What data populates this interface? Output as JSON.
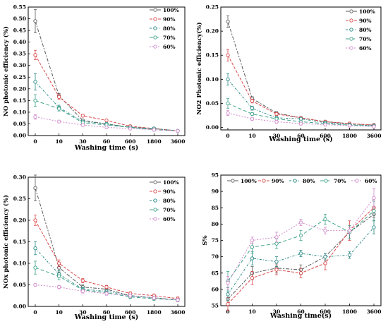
{
  "colors": [
    "#5a5a5a",
    "#d9484a",
    "#2a8a86",
    "#3fa28a",
    "#d08acb"
  ],
  "chart_data": [
    {
      "type": "line",
      "panel": "top-left",
      "xlabel": "Washing time (s)",
      "ylabel": "NO photonic efficiency (%)",
      "x_ticks": [
        "0",
        "10",
        "30",
        "60",
        "600",
        "1800",
        "3600"
      ],
      "ylim": [
        0,
        0.55
      ],
      "yticks": [
        "0.00",
        "0.05",
        "0.10",
        "0.15",
        "0.20",
        "0.25",
        "0.30",
        "0.35",
        "0.40",
        "0.45",
        "0.50",
        "0.55"
      ],
      "legend_position": "top-right",
      "series": [
        {
          "name": "100%",
          "values": [
            0.49,
            0.17,
            0.065,
            0.05,
            0.035,
            0.03,
            0.02
          ],
          "errors": [
            0.05,
            0.01,
            0.005,
            0.005,
            0.005,
            0.005,
            0.005
          ]
        },
        {
          "name": "90%",
          "values": [
            0.345,
            0.165,
            0.085,
            0.065,
            0.04,
            0.03,
            0.02
          ],
          "errors": [
            0.02,
            0.01,
            0.005,
            0.005,
            0.005,
            0.005,
            0.005
          ]
        },
        {
          "name": "80%",
          "values": [
            0.23,
            0.12,
            0.06,
            0.05,
            0.035,
            0.03,
            0.02
          ],
          "errors": [
            0.035,
            0.01,
            0.005,
            0.005,
            0.005,
            0.005,
            0.005
          ]
        },
        {
          "name": "70%",
          "values": [
            0.15,
            0.115,
            0.055,
            0.045,
            0.035,
            0.025,
            0.02
          ],
          "errors": [
            0.025,
            0.01,
            0.005,
            0.005,
            0.005,
            0.005,
            0.005
          ]
        },
        {
          "name": "60%",
          "values": [
            0.08,
            0.06,
            0.045,
            0.035,
            0.03,
            0.025,
            0.02
          ],
          "errors": [
            0.01,
            0.005,
            0.005,
            0.005,
            0.005,
            0.005,
            0.005
          ]
        }
      ]
    },
    {
      "type": "line",
      "panel": "top-right",
      "xlabel": "Washing time (s)",
      "ylabel": "NO2 Photonic efficiency(%)",
      "x_ticks": [
        "0",
        "10",
        "30",
        "60",
        "600",
        "1800",
        "3600"
      ],
      "ylim": [
        -0.005,
        0.25
      ],
      "yticks": [
        "0.00",
        "0.05",
        "0.10",
        "0.15",
        "0.20",
        "0.25"
      ],
      "legend_position": "top-right",
      "series": [
        {
          "name": "100%",
          "values": [
            0.22,
            0.06,
            0.03,
            0.02,
            0.012,
            0.008,
            0.005
          ],
          "errors": [
            0.012,
            0.004,
            0.003,
            0.003,
            0.003,
            0.003,
            0.003
          ]
        },
        {
          "name": "90%",
          "values": [
            0.15,
            0.055,
            0.028,
            0.02,
            0.012,
            0.008,
            0.005
          ],
          "errors": [
            0.012,
            0.004,
            0.003,
            0.003,
            0.003,
            0.003,
            0.003
          ]
        },
        {
          "name": "80%",
          "values": [
            0.1,
            0.04,
            0.02,
            0.018,
            0.01,
            0.006,
            0.004
          ],
          "errors": [
            0.012,
            0.004,
            0.003,
            0.003,
            0.003,
            0.003,
            0.003
          ]
        },
        {
          "name": "70%",
          "values": [
            0.05,
            0.028,
            0.018,
            0.012,
            0.008,
            0.005,
            0.003
          ],
          "errors": [
            0.01,
            0.003,
            0.003,
            0.003,
            0.003,
            0.003,
            0.003
          ]
        },
        {
          "name": "60%",
          "values": [
            0.03,
            0.018,
            0.012,
            0.008,
            0.006,
            0.004,
            0.002
          ],
          "errors": [
            0.005,
            0.003,
            0.003,
            0.003,
            0.003,
            0.003,
            0.003
          ]
        }
      ]
    },
    {
      "type": "line",
      "panel": "bottom-left",
      "xlabel": "Washing time (s)",
      "ylabel": "NOx photonic efficiency (%)",
      "x_ticks": [
        "0",
        "10",
        "30",
        "60",
        "600",
        "1800",
        "3600"
      ],
      "ylim": [
        0,
        0.3
      ],
      "yticks": [
        "0.00",
        "0.05",
        "0.10",
        "0.15",
        "0.20",
        "0.25",
        "0.30"
      ],
      "legend_position": "top-right",
      "series": [
        {
          "name": "100%",
          "values": [
            0.275,
            0.09,
            0.045,
            0.04,
            0.025,
            0.02,
            0.015
          ],
          "errors": [
            0.03,
            0.01,
            0.005,
            0.004,
            0.004,
            0.004,
            0.004
          ]
        },
        {
          "name": "90%",
          "values": [
            0.2,
            0.1,
            0.06,
            0.045,
            0.03,
            0.025,
            0.018
          ],
          "errors": [
            0.012,
            0.008,
            0.005,
            0.004,
            0.004,
            0.004,
            0.004
          ]
        },
        {
          "name": "80%",
          "values": [
            0.135,
            0.075,
            0.04,
            0.035,
            0.025,
            0.02,
            0.015
          ],
          "errors": [
            0.015,
            0.008,
            0.005,
            0.004,
            0.004,
            0.004,
            0.004
          ]
        },
        {
          "name": "70%",
          "values": [
            0.09,
            0.07,
            0.038,
            0.032,
            0.022,
            0.018,
            0.015
          ],
          "errors": [
            0.015,
            0.008,
            0.005,
            0.004,
            0.004,
            0.004,
            0.004
          ]
        },
        {
          "name": "60%",
          "values": [
            0.05,
            0.045,
            0.035,
            0.03,
            0.025,
            0.02,
            0.015
          ],
          "errors": [
            0.003,
            0.004,
            0.004,
            0.004,
            0.004,
            0.004,
            0.004
          ]
        }
      ]
    },
    {
      "type": "line",
      "panel": "bottom-right",
      "xlabel": "Washing time(s)",
      "ylabel": "S%",
      "x_ticks": [
        "0",
        "10",
        "30",
        "60",
        "600",
        "1800",
        "3600"
      ],
      "ylim": [
        55,
        95
      ],
      "yticks": [
        "55",
        "60",
        "65",
        "70",
        "75",
        "80",
        "85",
        "90",
        "95"
      ],
      "legend_position": "top",
      "series": [
        {
          "name": "100%",
          "values": [
            57,
            65,
            66.5,
            66,
            70,
            77.5,
            83
          ],
          "errors": [
            1.5,
            2,
            1.5,
            1.5,
            1,
            2,
            2
          ]
        },
        {
          "name": "90%",
          "values": [
            55.5,
            63.5,
            66,
            65,
            68,
            78,
            85
          ],
          "errors": [
            2,
            2,
            1.5,
            1.5,
            2,
            3,
            3
          ]
        },
        {
          "name": "80%",
          "values": [
            58.5,
            69.5,
            68.5,
            71,
            70,
            70.5,
            79
          ],
          "errors": [
            2,
            2,
            1.5,
            1,
            1,
            1,
            2
          ]
        },
        {
          "name": "70%",
          "values": [
            62.5,
            73,
            74,
            76.5,
            81.5,
            77.5,
            84
          ],
          "errors": [
            3,
            2,
            1.5,
            1.5,
            1.5,
            2,
            3
          ]
        },
        {
          "name": "60%",
          "values": [
            62,
            75,
            76,
            80.5,
            78,
            78,
            88
          ],
          "errors": [
            2,
            1,
            1.5,
            1,
            1,
            1,
            3
          ]
        }
      ]
    }
  ]
}
